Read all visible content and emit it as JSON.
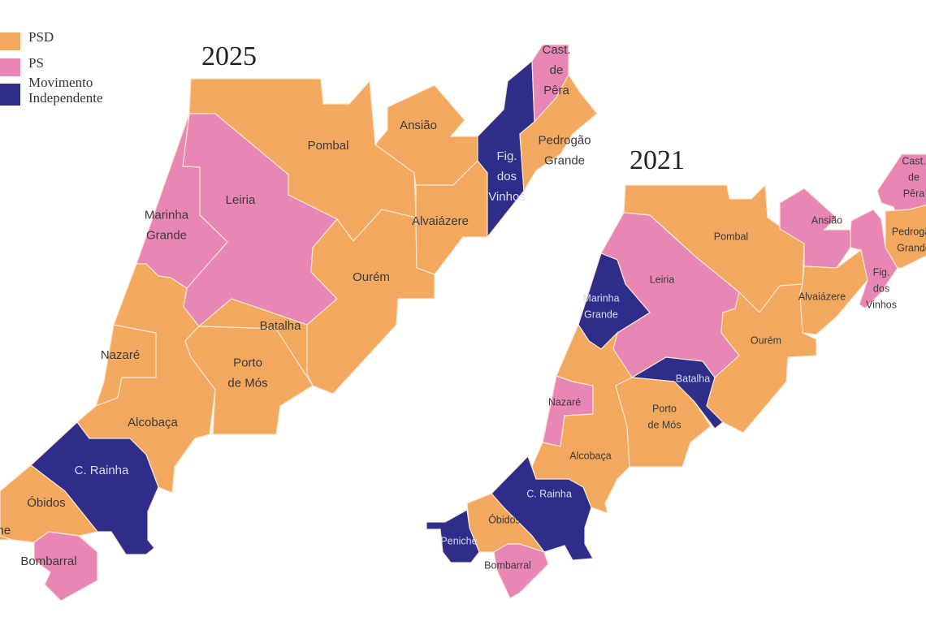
{
  "legend": [
    {
      "lines": [
        "PSD"
      ],
      "color": "#f2a85f"
    },
    {
      "lines": [
        "PS"
      ],
      "color": "#e887b6"
    },
    {
      "lines": [
        "Movimento",
        "Independente"
      ],
      "color": "#2e2d8a"
    }
  ],
  "maps": [
    {
      "year": "2025",
      "regions": [
        {
          "lines": [
            "Pombal"
          ],
          "color": "#f2a85f"
        },
        {
          "lines": [
            "Leiria"
          ],
          "color": "#e887b6"
        },
        {
          "lines": [
            "Marinha",
            "Grande"
          ],
          "color": "#e887b6"
        },
        {
          "lines": [
            "Nazaré"
          ],
          "color": "#f2a85f"
        },
        {
          "lines": [
            "Alcobaça"
          ],
          "color": "#f2a85f"
        },
        {
          "lines": [
            "Batalha"
          ],
          "color": "#f2a85f"
        },
        {
          "lines": [
            "Porto",
            "de Mós"
          ],
          "color": "#f2a85f"
        },
        {
          "lines": [
            "Ourém"
          ],
          "color": "#f2a85f"
        },
        {
          "lines": [
            "Ansião"
          ],
          "color": "#f2a85f"
        },
        {
          "lines": [
            "Alvaiázere"
          ],
          "color": "#f2a85f"
        },
        {
          "lines": [
            "Fig.",
            "dos",
            "Vinhos"
          ],
          "color": "#2e2d8a"
        },
        {
          "lines": [
            "Cast.",
            "de",
            "Pêra"
          ],
          "color": "#e887b6"
        },
        {
          "lines": [
            "Pedrogão",
            "Grande"
          ],
          "color": "#f2a85f"
        },
        {
          "lines": [
            "C. Rainha"
          ],
          "color": "#2e2d8a"
        },
        {
          "lines": [
            "Óbidos"
          ],
          "color": "#f2a85f"
        },
        {
          "lines": [
            "Peniche"
          ],
          "color": "#f2a85f"
        },
        {
          "lines": [
            "Bombarral"
          ],
          "color": "#e887b6"
        }
      ]
    },
    {
      "year": "2021",
      "regions": [
        {
          "lines": [
            "Pombal"
          ],
          "color": "#f2a85f"
        },
        {
          "lines": [
            "Leiria"
          ],
          "color": "#e887b6"
        },
        {
          "lines": [
            "Marinha",
            "Grande"
          ],
          "color": "#2e2d8a"
        },
        {
          "lines": [
            "Nazaré"
          ],
          "color": "#e887b6"
        },
        {
          "lines": [
            "Alcobaça"
          ],
          "color": "#f2a85f"
        },
        {
          "lines": [
            "Batalha"
          ],
          "color": "#2e2d8a"
        },
        {
          "lines": [
            "Porto",
            "de Mós"
          ],
          "color": "#f2a85f"
        },
        {
          "lines": [
            "Ourém"
          ],
          "color": "#f2a85f"
        },
        {
          "lines": [
            "Ansião"
          ],
          "color": "#e887b6"
        },
        {
          "lines": [
            "Alvaiázere"
          ],
          "color": "#f2a85f"
        },
        {
          "lines": [
            "Fig.",
            "dos",
            "Vinhos"
          ],
          "color": "#e887b6"
        },
        {
          "lines": [
            "Cast.",
            "de",
            "Pêra"
          ],
          "color": "#e887b6"
        },
        {
          "lines": [
            "Pedrogão",
            "Grande"
          ],
          "color": "#f2a85f"
        },
        {
          "lines": [
            "C. Rainha"
          ],
          "color": "#2e2d8a"
        },
        {
          "lines": [
            "Óbidos"
          ],
          "color": "#f2a85f"
        },
        {
          "lines": [
            "Peniche"
          ],
          "color": "#2e2d8a"
        },
        {
          "lines": [
            "Bombarral"
          ],
          "color": "#e887b6"
        }
      ]
    }
  ]
}
